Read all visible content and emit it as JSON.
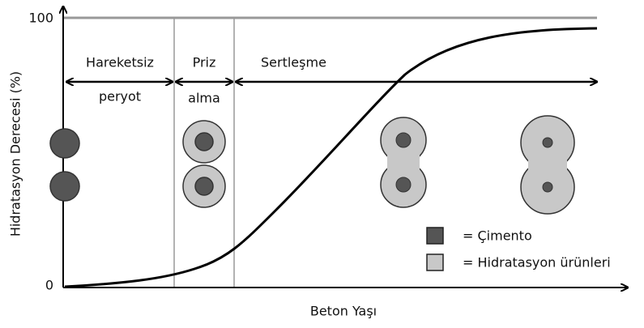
{
  "y_axis": {
    "title": "Hidratasyon Derecesi (%)",
    "top_label": "100",
    "bottom_label": "0"
  },
  "x_axis": {
    "title": "Beton Yaşı"
  },
  "phases": [
    {
      "label_line1": "Hareketsiz",
      "label_line2": "peryot"
    },
    {
      "label_line1": "Priz",
      "label_line2": "alma"
    },
    {
      "label_line1": "Sertleşme"
    }
  ],
  "legend": [
    {
      "label": "= Çimento"
    },
    {
      "label": "= Hidratasyon ürünleri"
    }
  ]
}
